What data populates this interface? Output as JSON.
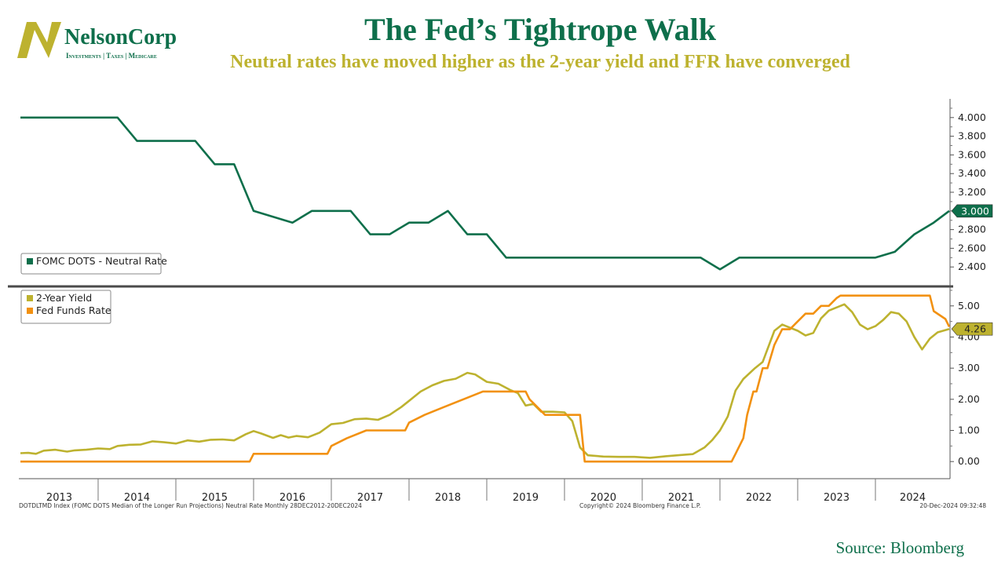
{
  "header": {
    "logo": {
      "name": "NelsonCorp",
      "tagline": "Investments | Taxes | Medicare",
      "colors": {
        "green": "#0e6f4b",
        "gold": "#bdb22f"
      }
    },
    "title": "The Fed’s Tightrope Walk",
    "subtitle": "Neutral rates have moved higher as the 2-year yield and FFR have converged"
  },
  "footer": {
    "index_note": "DOTDLTMD Index (FOMC DOTS Median of the Longer Run Projections) Neutral Rate  Monthly 28DEC2012-20DEC2024",
    "copyright": "Copyright© 2024 Bloomberg Finance L.P.",
    "timestamp": "20-Dec-2024 09:32:48",
    "source": "Source: Bloomberg"
  },
  "chart_data": [
    {
      "type": "line",
      "panel": "top",
      "x_range": [
        2012.98,
        2024.96
      ],
      "ylim": [
        2.2,
        4.2
      ],
      "yticks": [
        "2.400",
        "2.600",
        "2.800",
        "3.000",
        "3.200",
        "3.400",
        "3.600",
        "3.800",
        "4.000"
      ],
      "ytick_values": [
        2.4,
        2.6,
        2.8,
        3.0,
        3.2,
        3.4,
        3.6,
        3.8,
        4.0
      ],
      "legend_position": "bottom-left",
      "series": [
        {
          "name": "FOMC DOTS - Neutral Rate",
          "color": "#0e6f4b",
          "last_value_label": "3.000",
          "x": [
            2013.0,
            2014.25,
            2014.5,
            2015.25,
            2015.5,
            2015.75,
            2016.0,
            2016.5,
            2016.75,
            2017.25,
            2017.5,
            2017.75,
            2018.0,
            2018.25,
            2018.5,
            2018.75,
            2019.0,
            2019.25,
            2019.5,
            2019.75,
            2020.0,
            2020.25,
            2020.5,
            2020.75,
            2021.0,
            2021.25,
            2021.5,
            2021.75,
            2022.0,
            2022.25,
            2022.5,
            2022.75,
            2023.0,
            2023.25,
            2023.5,
            2023.75,
            2024.0,
            2024.25,
            2024.5,
            2024.75,
            2024.95
          ],
          "values": [
            4.0,
            4.0,
            3.75,
            3.75,
            3.5,
            3.5,
            3.0,
            2.875,
            3.0,
            3.0,
            2.75,
            2.75,
            2.875,
            2.875,
            3.0,
            2.75,
            2.75,
            2.5,
            2.5,
            2.5,
            2.5,
            2.5,
            2.5,
            2.5,
            2.5,
            2.5,
            2.5,
            2.5,
            2.375,
            2.5,
            2.5,
            2.5,
            2.5,
            2.5,
            2.5,
            2.5,
            2.5,
            2.5625,
            2.75,
            2.875,
            3.0
          ]
        }
      ]
    },
    {
      "type": "line",
      "panel": "bottom",
      "x_range": [
        2012.98,
        2024.96
      ],
      "ylim": [
        -0.55,
        5.6
      ],
      "yticks": [
        "0.00",
        "1.00",
        "2.00",
        "3.00",
        "4.00",
        "5.00"
      ],
      "ytick_values": [
        0,
        1,
        2,
        3,
        4,
        5
      ],
      "xticks": [
        "2013",
        "2014",
        "2015",
        "2016",
        "2017",
        "2018",
        "2019",
        "2020",
        "2021",
        "2022",
        "2023",
        "2024"
      ],
      "legend_position": "top-left",
      "series": [
        {
          "name": "2-Year Yield",
          "color": "#bdb22f",
          "last_value_label": "4.26",
          "x": [
            2013.0,
            2013.1,
            2013.2,
            2013.3,
            2013.45,
            2013.6,
            2013.7,
            2013.85,
            2014.0,
            2014.15,
            2014.25,
            2014.4,
            2014.55,
            2014.7,
            2014.85,
            2015.0,
            2015.15,
            2015.3,
            2015.45,
            2015.6,
            2015.75,
            2015.9,
            2016.0,
            2016.1,
            2016.25,
            2016.35,
            2016.45,
            2016.55,
            2016.7,
            2016.85,
            2017.0,
            2017.15,
            2017.3,
            2017.45,
            2017.6,
            2017.75,
            2017.9,
            2018.0,
            2018.15,
            2018.3,
            2018.45,
            2018.6,
            2018.75,
            2018.85,
            2019.0,
            2019.15,
            2019.3,
            2019.4,
            2019.5,
            2019.6,
            2019.7,
            2019.85,
            2020.0,
            2020.1,
            2020.2,
            2020.3,
            2020.5,
            2020.7,
            2020.9,
            2021.1,
            2021.3,
            2021.5,
            2021.65,
            2021.8,
            2021.9,
            2022.0,
            2022.1,
            2022.2,
            2022.3,
            2022.45,
            2022.55,
            2022.7,
            2022.8,
            2022.9,
            2023.0,
            2023.1,
            2023.2,
            2023.3,
            2023.4,
            2023.5,
            2023.6,
            2023.7,
            2023.8,
            2023.9,
            2024.0,
            2024.1,
            2024.2,
            2024.3,
            2024.4,
            2024.5,
            2024.6,
            2024.7,
            2024.8,
            2024.95
          ],
          "values": [
            0.27,
            0.28,
            0.25,
            0.35,
            0.38,
            0.32,
            0.36,
            0.38,
            0.42,
            0.4,
            0.5,
            0.54,
            0.55,
            0.65,
            0.62,
            0.58,
            0.68,
            0.64,
            0.7,
            0.71,
            0.68,
            0.88,
            0.98,
            0.9,
            0.76,
            0.85,
            0.77,
            0.82,
            0.78,
            0.93,
            1.2,
            1.24,
            1.36,
            1.38,
            1.34,
            1.5,
            1.75,
            1.95,
            2.25,
            2.45,
            2.59,
            2.66,
            2.85,
            2.8,
            2.56,
            2.5,
            2.3,
            2.2,
            1.8,
            1.85,
            1.6,
            1.6,
            1.58,
            1.3,
            0.45,
            0.2,
            0.16,
            0.15,
            0.15,
            0.12,
            0.17,
            0.21,
            0.24,
            0.45,
            0.69,
            1.0,
            1.45,
            2.28,
            2.65,
            3.0,
            3.2,
            4.2,
            4.4,
            4.3,
            4.2,
            4.05,
            4.13,
            4.6,
            4.85,
            4.95,
            5.05,
            4.8,
            4.4,
            4.25,
            4.35,
            4.55,
            4.8,
            4.75,
            4.5,
            4.0,
            3.6,
            3.95,
            4.15,
            4.26
          ]
        },
        {
          "name": "Fed Funds Rate",
          "color": "#f29111",
          "last_value_label": "",
          "x": [
            2013.0,
            2015.95,
            2016.0,
            2016.95,
            2017.0,
            2017.2,
            2017.45,
            2017.95,
            2018.0,
            2018.2,
            2018.45,
            2018.7,
            2018.95,
            2019.5,
            2019.55,
            2019.65,
            2019.75,
            2019.85,
            2020.2,
            2020.22,
            2020.26,
            2022.15,
            2022.2,
            2022.3,
            2022.35,
            2022.43,
            2022.47,
            2022.55,
            2022.61,
            2022.7,
            2022.8,
            2022.9,
            2023.0,
            2023.1,
            2023.2,
            2023.3,
            2023.4,
            2023.5,
            2023.55,
            2024.7,
            2024.75,
            2024.9,
            2024.95
          ],
          "values": [
            0.0,
            0.0,
            0.25,
            0.25,
            0.5,
            0.75,
            1.0,
            1.0,
            1.25,
            1.5,
            1.75,
            2.0,
            2.25,
            2.25,
            2.0,
            1.75,
            1.5,
            1.5,
            1.5,
            1.0,
            0.0,
            0.0,
            0.25,
            0.75,
            1.5,
            2.25,
            2.25,
            3.0,
            3.0,
            3.75,
            4.25,
            4.25,
            4.5,
            4.75,
            4.75,
            5.0,
            5.0,
            5.25,
            5.33,
            5.33,
            4.83,
            4.58,
            4.33
          ]
        }
      ]
    }
  ]
}
